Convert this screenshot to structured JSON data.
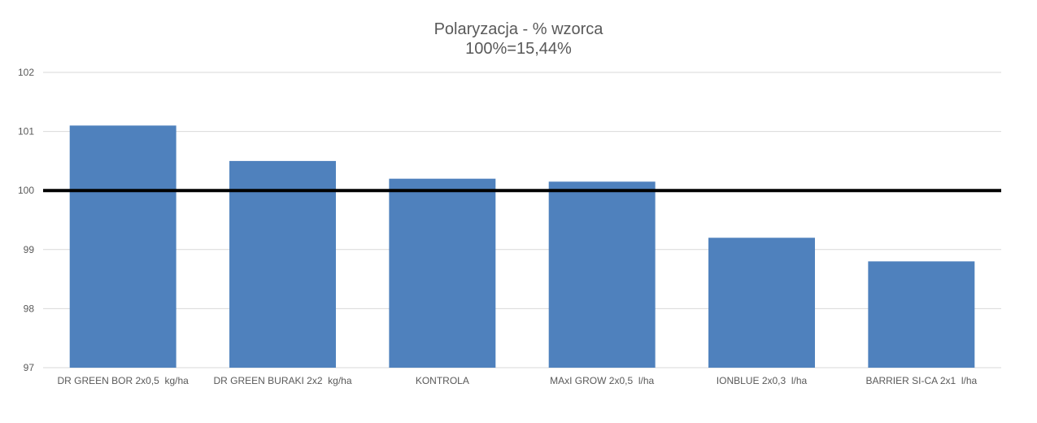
{
  "chart_data": {
    "type": "bar",
    "title": "Polaryzacja - % wzorca",
    "subtitle": "100%=15,44%",
    "xlabel": "",
    "ylabel": "",
    "categories": [
      "DR GREEN BOR 2x0,5  kg/ha",
      "DR GREEN BURAKI 2x2  kg/ha",
      "KONTROLA",
      "MAxI GROW 2x0,5  l/ha",
      "IONBLUE 2x0,3  l/ha",
      "BARRIER SI-CA 2x1  l/ha"
    ],
    "values": [
      101.1,
      100.5,
      100.2,
      100.15,
      99.2,
      98.8
    ],
    "ylim": [
      97,
      102
    ],
    "yticks": [
      "97",
      "98",
      "99",
      "100",
      "101",
      "102"
    ],
    "reference_line": 100,
    "grid": true,
    "legend": "none",
    "colors": {
      "bar": "#4f81bd",
      "grid": "#d9d9d9",
      "reference_line": "#000000",
      "text": "#595959"
    }
  }
}
